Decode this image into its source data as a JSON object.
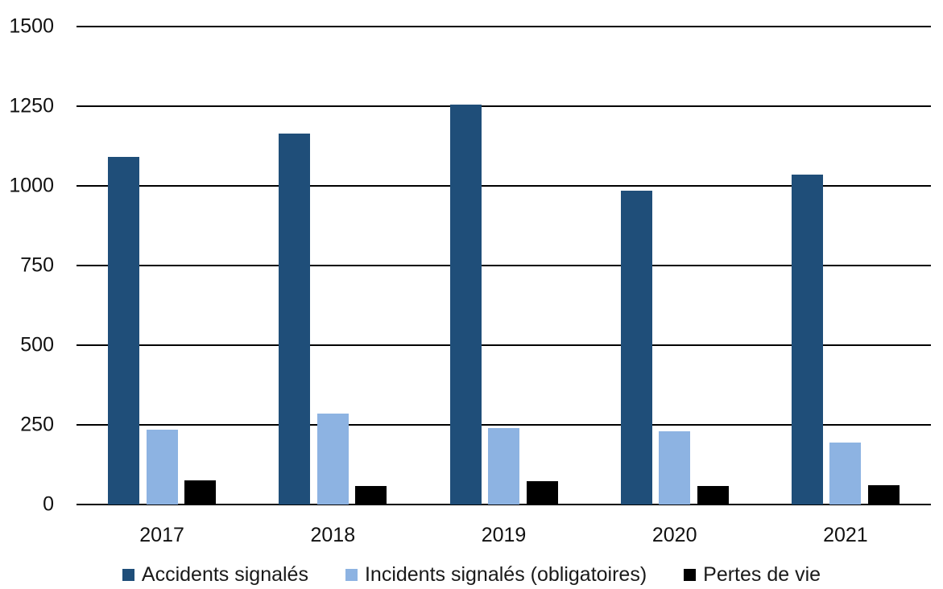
{
  "chart_data": {
    "type": "bar",
    "title": "",
    "xlabel": "",
    "ylabel": "",
    "categories": [
      "2017",
      "2018",
      "2019",
      "2020",
      "2021"
    ],
    "series": [
      {
        "name": "Accidents signalés",
        "color": "#1F4E79",
        "values": [
          1090,
          1165,
          1255,
          985,
          1035
        ]
      },
      {
        "name": "Incidents signalés (obligatoires)",
        "color": "#8DB3E2",
        "values": [
          235,
          285,
          240,
          230,
          195
        ]
      },
      {
        "name": "Pertes de vie",
        "color": "#000000",
        "values": [
          77,
          57,
          72,
          58,
          60
        ]
      }
    ],
    "ylim": [
      0,
      1500
    ],
    "y_ticks": [
      0,
      250,
      500,
      750,
      1000,
      1250,
      1500
    ],
    "grid": true,
    "legend_position": "bottom",
    "colors": {
      "grid_line": "#000000",
      "axis_text": "#111111",
      "legend_text": "#1a1a1a",
      "background": "#ffffff"
    }
  }
}
